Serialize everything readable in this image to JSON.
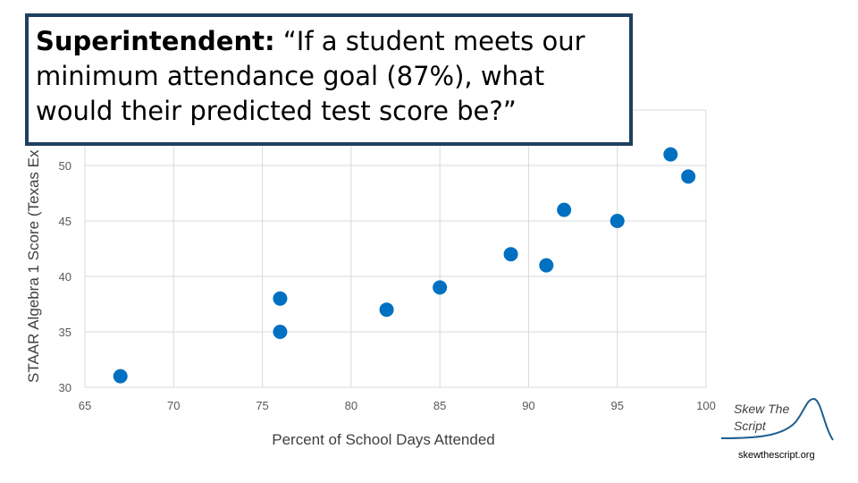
{
  "quote": {
    "speaker": "Superintendent:",
    "text": " “If a student meets our minimum attendance goal (87%), what would their predicted test score be?”"
  },
  "chart_data": {
    "type": "scatter",
    "title": "",
    "xlabel": "Percent of School Days Attended",
    "ylabel": "STAAR Algebra 1 Score (Texas Ex",
    "xlim": [
      65,
      100
    ],
    "ylim": [
      30,
      55
    ],
    "xticks": [
      65,
      70,
      75,
      80,
      85,
      90,
      95,
      100
    ],
    "yticks": [
      30,
      35,
      40,
      45,
      50
    ],
    "grid": true,
    "series": [
      {
        "points": [
          {
            "x": 67,
            "y": 31
          },
          {
            "x": 76,
            "y": 38
          },
          {
            "x": 76,
            "y": 35
          },
          {
            "x": 82,
            "y": 37
          },
          {
            "x": 85,
            "y": 39
          },
          {
            "x": 89,
            "y": 42
          },
          {
            "x": 91,
            "y": 41
          },
          {
            "x": 92,
            "y": 46
          },
          {
            "x": 95,
            "y": 45
          },
          {
            "x": 98,
            "y": 51
          },
          {
            "x": 99,
            "y": 49
          }
        ]
      }
    ],
    "colors": {
      "points": "#0070c0",
      "grid": "#d9d9d9"
    }
  },
  "logo": {
    "name": "Skew The Script",
    "icon": "skewed-curve-icon"
  },
  "footer": {
    "site": "skewthescript.org"
  }
}
